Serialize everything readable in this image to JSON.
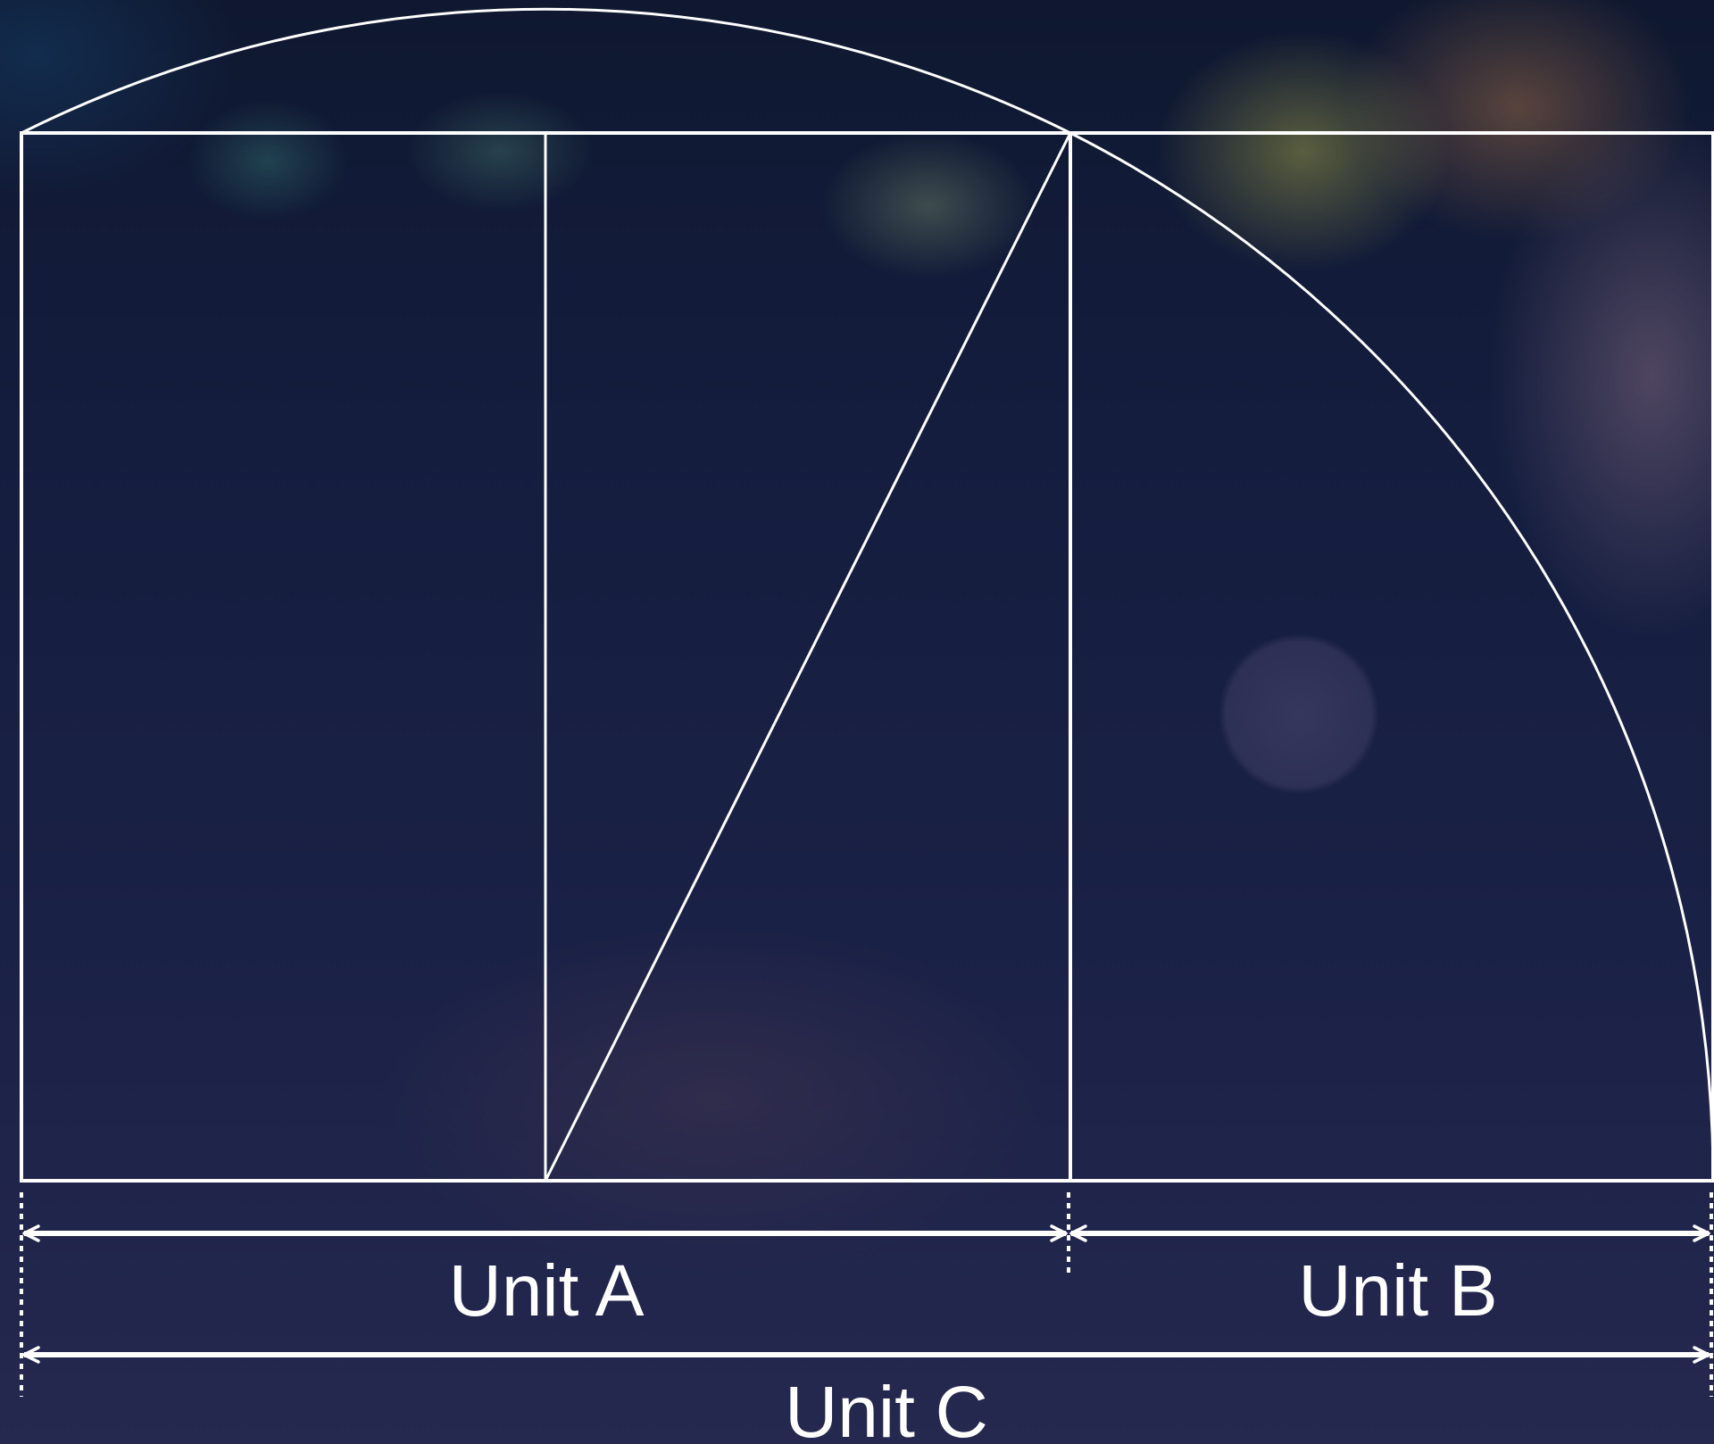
{
  "labels": {
    "unit_a": "Unit A",
    "unit_b": "Unit B",
    "unit_c": "Unit C"
  },
  "colors": {
    "line": "#ffffff",
    "background": "#1b2140"
  }
}
